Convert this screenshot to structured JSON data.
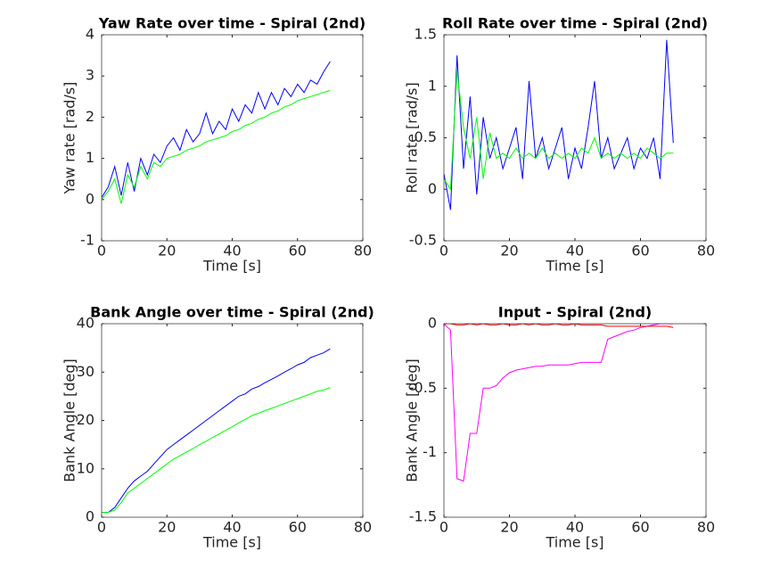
{
  "chart_data": [
    {
      "type": "line",
      "title": "Yaw Rate over time - Spiral (2nd)",
      "xlabel": "Time [s]",
      "ylabel": "Yaw rate [rad/s]",
      "x": [
        0,
        2,
        4,
        6,
        8,
        10,
        12,
        14,
        16,
        18,
        20,
        22,
        24,
        26,
        28,
        30,
        32,
        34,
        36,
        38,
        40,
        42,
        44,
        46,
        48,
        50,
        52,
        54,
        56,
        58,
        60,
        62,
        64,
        66,
        68,
        70
      ],
      "series": [
        {
          "color": "#0000ff",
          "values": [
            0.05,
            0.3,
            0.8,
            0.1,
            0.9,
            0.2,
            1.0,
            0.6,
            1.1,
            0.9,
            1.3,
            1.5,
            1.2,
            1.7,
            1.4,
            1.6,
            2.1,
            1.6,
            1.9,
            1.7,
            2.2,
            1.9,
            2.3,
            2.1,
            2.6,
            2.2,
            2.6,
            2.3,
            2.7,
            2.5,
            2.8,
            2.6,
            2.9,
            2.8,
            3.1,
            3.35
          ]
        },
        {
          "color": "#00ff00",
          "values": [
            0,
            0.2,
            0.5,
            -0.1,
            0.6,
            0.3,
            0.8,
            0.5,
            0.9,
            0.8,
            1.0,
            1.05,
            1.1,
            1.2,
            1.25,
            1.3,
            1.4,
            1.45,
            1.5,
            1.55,
            1.65,
            1.7,
            1.8,
            1.85,
            1.95,
            2.0,
            2.1,
            2.15,
            2.25,
            2.3,
            2.4,
            2.45,
            2.5,
            2.55,
            2.6,
            2.65
          ]
        }
      ],
      "xlim": [
        0,
        80
      ],
      "xticks": [
        0,
        20,
        40,
        60,
        80
      ],
      "ylim": [
        -1,
        4
      ],
      "yticks": [
        -1,
        0,
        1,
        2,
        3,
        4
      ]
    },
    {
      "type": "line",
      "title": "Roll Rate over time - Spiral (2nd)",
      "xlabel": "Time [s]",
      "ylabel": "Roll rate [rad/s]",
      "x": [
        0,
        2,
        4,
        6,
        8,
        10,
        12,
        14,
        16,
        18,
        20,
        22,
        24,
        26,
        28,
        30,
        32,
        34,
        36,
        38,
        40,
        42,
        44,
        46,
        48,
        50,
        52,
        54,
        56,
        58,
        60,
        62,
        64,
        66,
        68,
        70
      ],
      "series": [
        {
          "color": "#0000ff",
          "values": [
            0.15,
            -0.2,
            1.3,
            0.2,
            0.9,
            -0.05,
            0.7,
            0.3,
            0.5,
            0.2,
            0.4,
            0.6,
            0.1,
            1.05,
            0.3,
            0.5,
            0.2,
            0.4,
            0.6,
            0.1,
            0.4,
            0.2,
            0.6,
            1.05,
            0.3,
            0.5,
            0.2,
            0.35,
            0.5,
            0.2,
            0.4,
            0.3,
            0.5,
            0.1,
            1.45,
            0.45
          ]
        },
        {
          "color": "#00ff00",
          "values": [
            0.1,
            0.0,
            1.15,
            0.6,
            0.3,
            0.7,
            0.1,
            0.55,
            0.3,
            0.35,
            0.3,
            0.4,
            0.3,
            0.35,
            0.3,
            0.4,
            0.3,
            0.35,
            0.3,
            0.35,
            0.3,
            0.4,
            0.35,
            0.5,
            0.3,
            0.35,
            0.3,
            0.35,
            0.3,
            0.35,
            0.3,
            0.4,
            0.35,
            0.3,
            0.35,
            0.35
          ]
        }
      ],
      "xlim": [
        0,
        80
      ],
      "xticks": [
        0,
        20,
        40,
        60,
        80
      ],
      "ylim": [
        -0.5,
        1.5
      ],
      "yticks": [
        -0.5,
        0,
        0.5,
        1,
        1.5
      ]
    },
    {
      "type": "line",
      "title": "Bank Angle over time - Spiral (2nd)",
      "xlabel": "Time [s]",
      "ylabel": "Bank Angle [deg]",
      "x": [
        0,
        2,
        4,
        6,
        8,
        10,
        12,
        14,
        16,
        18,
        20,
        22,
        24,
        26,
        28,
        30,
        32,
        34,
        36,
        38,
        40,
        42,
        44,
        46,
        48,
        50,
        52,
        54,
        56,
        58,
        60,
        62,
        64,
        66,
        68,
        70
      ],
      "series": [
        {
          "color": "#0000ff",
          "values": [
            1,
            1,
            2,
            4,
            6,
            7.5,
            8.5,
            9.5,
            11,
            12.5,
            14,
            15,
            16,
            17,
            18,
            19,
            20,
            21,
            22,
            23,
            24,
            25,
            25.5,
            26.5,
            27,
            27.8,
            28.5,
            29.2,
            30,
            30.7,
            31.5,
            32,
            33,
            33.5,
            34,
            34.8
          ]
        },
        {
          "color": "#00ff00",
          "values": [
            1,
            1,
            1.5,
            3,
            5,
            6,
            7,
            8,
            9,
            10,
            11,
            12,
            12.7,
            13.5,
            14.2,
            15,
            15.7,
            16.5,
            17.2,
            18,
            18.7,
            19.5,
            20.2,
            21,
            21.5,
            22,
            22.5,
            23,
            23.5,
            24,
            24.5,
            25,
            25.5,
            26,
            26.3,
            26.8
          ]
        }
      ],
      "xlim": [
        0,
        80
      ],
      "xticks": [
        0,
        20,
        40,
        60,
        80
      ],
      "ylim": [
        0,
        40
      ],
      "yticks": [
        0,
        10,
        20,
        30,
        40
      ]
    },
    {
      "type": "line",
      "title": "Input - Spiral (2nd)",
      "xlabel": "Time [s]",
      "ylabel": "Bank Angle [deg]",
      "x": [
        0,
        2,
        4,
        6,
        8,
        10,
        12,
        14,
        16,
        18,
        20,
        22,
        24,
        26,
        28,
        30,
        32,
        34,
        36,
        38,
        40,
        42,
        44,
        46,
        48,
        50,
        52,
        54,
        56,
        58,
        60,
        62,
        64,
        66,
        68,
        70
      ],
      "series": [
        {
          "color": "#ff00ff",
          "values": [
            0,
            -0.05,
            -1.2,
            -1.22,
            -0.85,
            -0.85,
            -0.5,
            -0.5,
            -0.48,
            -0.42,
            -0.38,
            -0.36,
            -0.35,
            -0.34,
            -0.33,
            -0.33,
            -0.32,
            -0.32,
            -0.32,
            -0.32,
            -0.31,
            -0.3,
            -0.3,
            -0.3,
            -0.3,
            -0.12,
            -0.1,
            -0.08,
            -0.06,
            -0.05,
            -0.03,
            -0.02,
            -0.01,
            0,
            0,
            0
          ]
        },
        {
          "color": "#ff0000",
          "values": [
            0,
            0,
            -0.01,
            -0.01,
            0,
            -0.01,
            0,
            -0.01,
            -0.01,
            0,
            -0.01,
            -0.01,
            0,
            -0.01,
            0,
            -0.01,
            -0.01,
            0,
            -0.01,
            -0.01,
            0,
            -0.01,
            -0.01,
            -0.01,
            -0.01,
            -0.02,
            -0.02,
            -0.02,
            -0.02,
            -0.02,
            -0.02,
            -0.02,
            -0.02,
            -0.02,
            -0.02,
            -0.03
          ]
        }
      ],
      "xlim": [
        0,
        80
      ],
      "xticks": [
        0,
        20,
        40,
        60,
        80
      ],
      "ylim": [
        -1.5,
        0
      ],
      "yticks": [
        -1.5,
        -1,
        -0.5,
        0
      ]
    }
  ]
}
